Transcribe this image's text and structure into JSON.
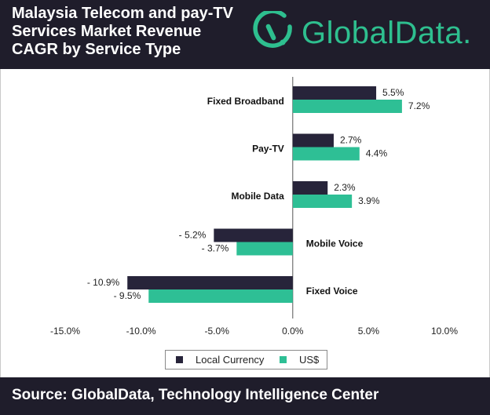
{
  "header": {
    "title_lines": [
      "Malaysia Telecom and pay-TV",
      "Services Market Revenue",
      "CAGR by Service Type"
    ],
    "logo_text": "GlobalData."
  },
  "colors": {
    "header_bg": "#1f1d2b",
    "local_currency": "#27243a",
    "usd": "#2ebf95",
    "brand": "#2ebf8f"
  },
  "legend": {
    "items": [
      {
        "label": "Local Currency",
        "color": "#27243a"
      },
      {
        "label": "US$",
        "color": "#2ebf95"
      }
    ]
  },
  "footer": {
    "source": "Source: GlobalData, Technology Intelligence Center"
  },
  "chart_data": {
    "type": "bar",
    "orientation": "horizontal",
    "categories": [
      "Fixed Broadband",
      "Pay-TV",
      "Mobile Data",
      "Mobile Voice",
      "Fixed Voice"
    ],
    "series": [
      {
        "name": "Local Currency",
        "values": [
          5.5,
          2.7,
          2.3,
          -5.2,
          -10.9
        ],
        "labels": [
          "5.5%",
          "2.7%",
          "2.3%",
          "- 5.2%",
          "- 10.9%"
        ]
      },
      {
        "name": "US$",
        "values": [
          7.2,
          4.4,
          3.9,
          -3.7,
          -9.5
        ],
        "labels": [
          "7.2%",
          "4.4%",
          "3.9%",
          "- 3.7%",
          "- 9.5%"
        ]
      }
    ],
    "xlim": [
      -15,
      10
    ],
    "xticks": [
      -15,
      -10,
      -5,
      0,
      5,
      10
    ],
    "xtick_labels": [
      "-15.0%",
      "-10.0%",
      "-5.0%",
      "0.0%",
      "5.0%",
      "10.0%"
    ],
    "title": "Malaysia Telecom and pay-TV Services Market Revenue CAGR by Service Type",
    "xlabel": "",
    "ylabel": "",
    "grid": false,
    "legend_position": "bottom"
  }
}
